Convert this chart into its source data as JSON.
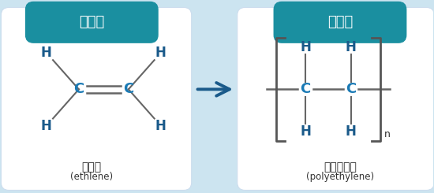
{
  "bg_color": "#cce4f0",
  "panel_color": "#ffffff",
  "teal_color": "#1a7ab5",
  "dark_blue": "#1a5a8a",
  "gray_line": "#666666",
  "arrow_color": "#1a5a8a",
  "title_bg": "#1a8fa0",
  "title_text_color": "#ffffff",
  "title_left": "단량체",
  "title_right": "중합체",
  "label_left_bold": "에틸렌",
  "label_left_normal": "(ethlene)",
  "label_right_bold": "폴리에틸렌",
  "label_right_normal": "(polyethylene)"
}
